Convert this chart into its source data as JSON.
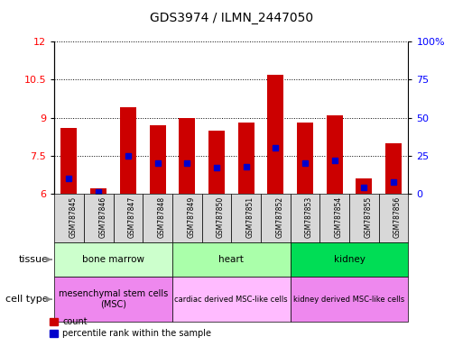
{
  "title": "GDS3974 / ILMN_2447050",
  "samples": [
    "GSM787845",
    "GSM787846",
    "GSM787847",
    "GSM787848",
    "GSM787849",
    "GSM787850",
    "GSM787851",
    "GSM787852",
    "GSM787853",
    "GSM787854",
    "GSM787855",
    "GSM787856"
  ],
  "red_values": [
    8.6,
    6.2,
    9.4,
    8.7,
    9.0,
    8.5,
    8.8,
    10.7,
    8.8,
    9.1,
    6.6,
    8.0
  ],
  "blue_values_pct": [
    10,
    1,
    25,
    20,
    20,
    17,
    18,
    30,
    20,
    22,
    4,
    8
  ],
  "ylim_left": [
    6,
    12
  ],
  "ylim_right": [
    0,
    100
  ],
  "yticks_left": [
    6,
    7.5,
    9,
    10.5,
    12
  ],
  "yticks_right": [
    0,
    25,
    50,
    75,
    100
  ],
  "bar_color": "#cc0000",
  "marker_color": "#0000cc",
  "tissue_ranges": [
    {
      "label": "bone marrow",
      "start": 0,
      "end": 3,
      "color": "#ccffcc"
    },
    {
      "label": "heart",
      "start": 4,
      "end": 7,
      "color": "#aaffaa"
    },
    {
      "label": "kidney",
      "start": 8,
      "end": 11,
      "color": "#00dd55"
    }
  ],
  "celltype_ranges": [
    {
      "label": "mesenchymal stem cells\n(MSC)",
      "start": 0,
      "end": 3,
      "color": "#ee88ee"
    },
    {
      "label": "cardiac derived MSC-like cells",
      "start": 4,
      "end": 7,
      "color": "#ffbbff"
    },
    {
      "label": "kidney derived MSC-like cells",
      "start": 8,
      "end": 11,
      "color": "#ee88ee"
    }
  ],
  "bar_width": 0.55
}
